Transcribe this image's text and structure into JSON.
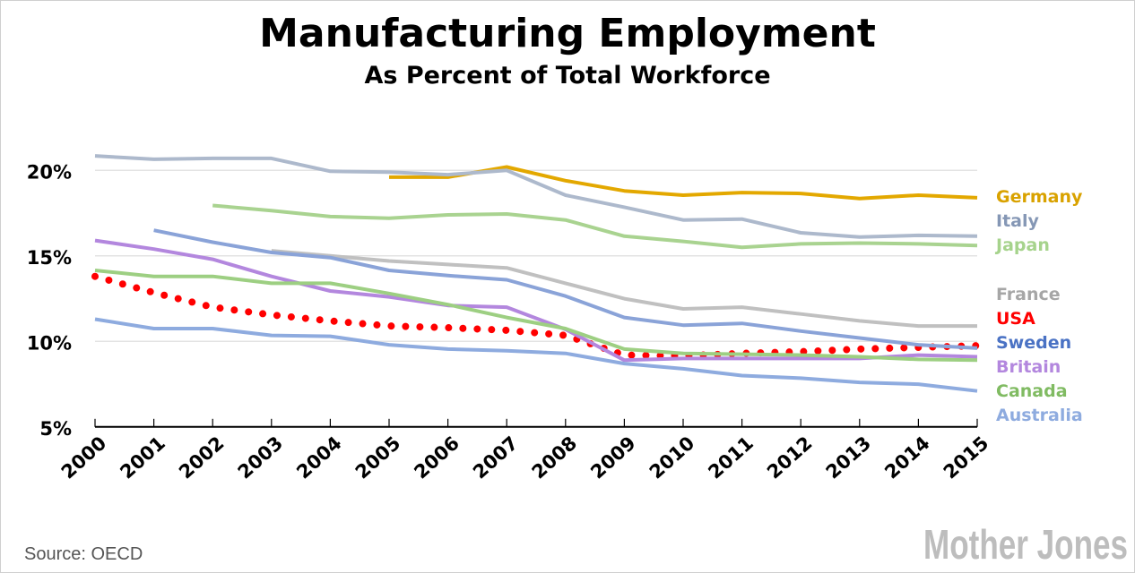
{
  "chart_data": {
    "type": "line",
    "title": "Manufacturing Employment",
    "subtitle": "As Percent of Total Workforce",
    "xlabel": "",
    "ylabel": "",
    "x": [
      2000,
      2001,
      2002,
      2003,
      2004,
      2005,
      2006,
      2007,
      2008,
      2009,
      2010,
      2011,
      2012,
      2013,
      2014,
      2015
    ],
    "x_tick_labels": [
      "2000",
      "2001",
      "2002",
      "2003",
      "2004",
      "2005",
      "2006",
      "2007",
      "2008",
      "2009",
      "2010",
      "2011",
      "2012",
      "2013",
      "2014",
      "2015"
    ],
    "ylim": [
      5,
      20
    ],
    "y_ticks": [
      5,
      10,
      15,
      20
    ],
    "y_tick_labels": [
      "5%",
      "10%",
      "15%",
      "20%"
    ],
    "grid": true,
    "legend_placement": "right",
    "series": [
      {
        "name": "Germany",
        "color": "#e3a800",
        "label_color": "#d9a200",
        "style": "solid",
        "values": [
          null,
          null,
          null,
          null,
          null,
          19.6,
          19.6,
          20.2,
          19.4,
          18.8,
          18.55,
          18.7,
          18.65,
          18.35,
          18.55,
          18.4
        ]
      },
      {
        "name": "Italy",
        "color": "#adb9cc",
        "label_color": "#8597b5",
        "style": "solid",
        "values": [
          20.85,
          20.65,
          20.7,
          20.7,
          19.95,
          19.9,
          19.75,
          20.0,
          18.55,
          17.85,
          17.1,
          17.15,
          16.35,
          16.1,
          16.2,
          16.15
        ]
      },
      {
        "name": "Japan",
        "color": "#a9d390",
        "label_color": "#a6d38c",
        "style": "solid",
        "values": [
          null,
          null,
          17.95,
          17.65,
          17.3,
          17.2,
          17.4,
          17.45,
          17.1,
          16.15,
          15.85,
          15.5,
          15.7,
          15.75,
          15.7,
          15.6
        ]
      },
      {
        "name": "France",
        "color": "#c0c0c0",
        "label_color": "#a6a6a6",
        "style": "solid",
        "values": [
          null,
          null,
          null,
          15.3,
          15.0,
          14.7,
          14.5,
          14.3,
          13.4,
          12.5,
          11.9,
          12.0,
          11.6,
          11.2,
          10.9,
          10.9
        ]
      },
      {
        "name": "USA",
        "color": "#ff0000",
        "label_color": "#ff0000",
        "style": "dotted",
        "values": [
          13.8,
          12.85,
          12.0,
          11.55,
          11.2,
          10.9,
          10.8,
          10.65,
          10.35,
          9.2,
          9.15,
          9.3,
          9.4,
          9.55,
          9.65,
          9.75
        ]
      },
      {
        "name": "Sweden",
        "color": "#8aa3d8",
        "label_color": "#4a72c4",
        "style": "solid",
        "values": [
          null,
          16.5,
          15.8,
          15.2,
          14.9,
          14.15,
          13.85,
          13.6,
          12.65,
          11.4,
          10.95,
          11.05,
          10.6,
          10.2,
          9.8,
          9.6
        ]
      },
      {
        "name": "Britain",
        "color": "#b387de",
        "label_color": "#b387de",
        "style": "solid",
        "values": [
          15.9,
          15.4,
          14.8,
          13.8,
          12.95,
          12.6,
          12.1,
          12.0,
          10.7,
          8.9,
          9.0,
          9.0,
          9.0,
          9.0,
          9.2,
          9.1
        ]
      },
      {
        "name": "Canada",
        "color": "#9dcf82",
        "label_color": "#80bb62",
        "style": "solid",
        "values": [
          14.15,
          13.8,
          13.8,
          13.4,
          13.4,
          12.8,
          12.15,
          11.4,
          10.75,
          9.55,
          9.3,
          9.25,
          9.2,
          9.1,
          8.95,
          8.9
        ]
      },
      {
        "name": "Australia",
        "color": "#8eabdf",
        "label_color": "#8eabdf",
        "style": "solid",
        "values": [
          11.3,
          10.75,
          10.75,
          10.35,
          10.3,
          9.8,
          9.55,
          9.45,
          9.3,
          8.7,
          8.4,
          8.0,
          7.85,
          7.6,
          7.5,
          7.1
        ]
      }
    ]
  },
  "footer": {
    "source": "Source:  OECD",
    "logo": "Mother Jones"
  }
}
